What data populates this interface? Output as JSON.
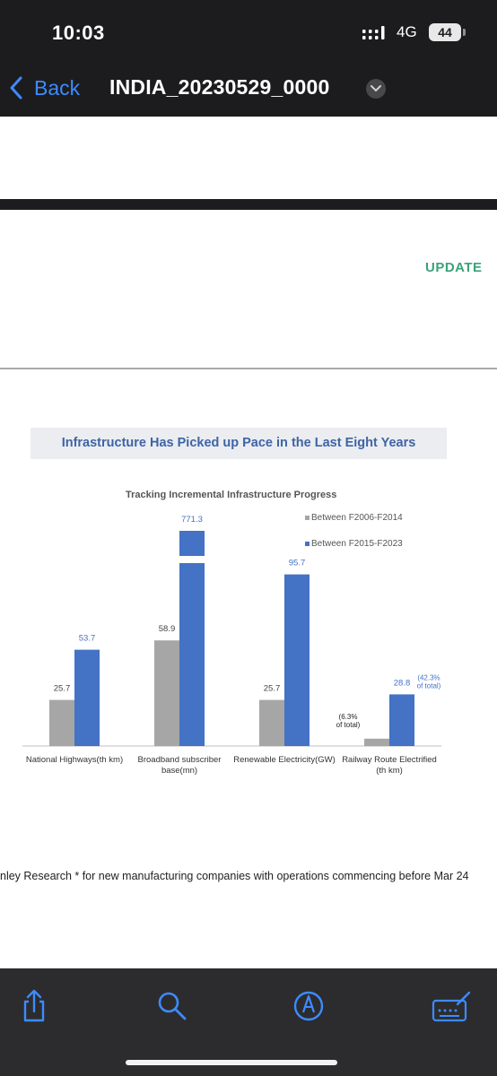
{
  "status_bar": {
    "time": "10:03",
    "network": "4G",
    "battery": "44"
  },
  "nav": {
    "back_label": "Back",
    "document_title": "INDIA_20230529_0000"
  },
  "page": {
    "update_label": "UPDATE",
    "banner_title": "Infrastructure Has Picked up Pace in the Last  Eight Years",
    "source_text": "nley Research * for new manufacturing companies with operations commencing before Mar 24"
  },
  "colors": {
    "series1": "#a6a6a6",
    "series2": "#4472c4",
    "update": "#3aa37a",
    "link": "#3d8bff"
  },
  "icons": [
    "chevron-left-icon",
    "chevron-down-icon",
    "share-icon",
    "search-icon",
    "markup-icon",
    "keyboard-icon"
  ],
  "chart_data": {
    "type": "bar",
    "title": "Tracking Incremental Infrastructure Progress",
    "categories": [
      [
        "National Highways(th km)"
      ],
      [
        "Broadband subscriber",
        "base(mn)"
      ],
      [
        "Renewable Electricity(GW)"
      ],
      [
        "Railway Route Electrified",
        "(th km)"
      ]
    ],
    "series": [
      {
        "name": "Between F2006-F2014",
        "values": [
          25.7,
          58.9,
          25.7,
          4.1
        ],
        "labels": [
          "25.7",
          "58.9",
          "25.7",
          "4.1"
        ]
      },
      {
        "name": "Between F2015-F2023",
        "values": [
          53.7,
          771.3,
          95.7,
          28.8
        ],
        "labels": [
          "53.7",
          "771.3",
          "95.7",
          "28.8"
        ]
      }
    ],
    "annotations": [
      {
        "category": 3,
        "series": 0,
        "text": [
          "(6.3%",
          "of total)"
        ]
      },
      {
        "category": 3,
        "series": 1,
        "text": [
          "(42.3%",
          "of total)"
        ]
      }
    ],
    "axis_break": {
      "category": 1,
      "series": 1
    },
    "legend_position": "top-right",
    "grid": false
  }
}
